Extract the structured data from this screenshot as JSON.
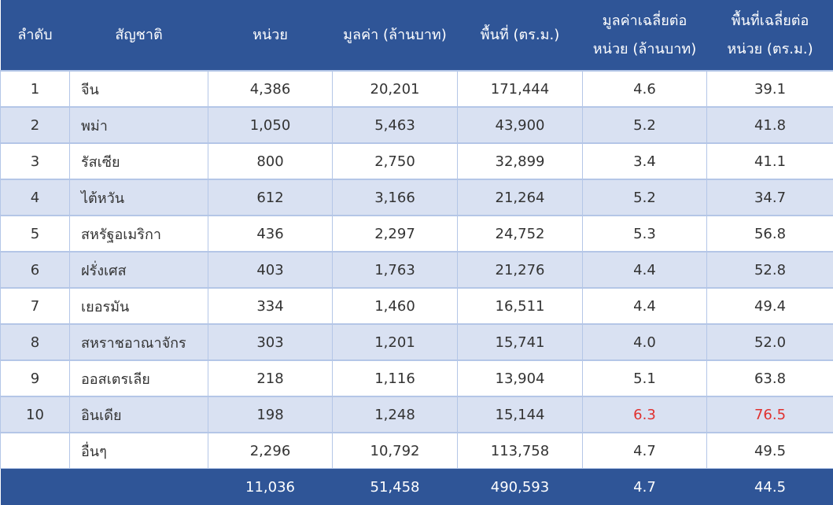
{
  "headers": [
    "ลำดับ",
    "สัญชาติ",
    "หน่วย",
    "มูลค่า (ล้านบาท)",
    "พื้นที่ (ตร.ม.)",
    [
      "มูลค่าเฉลี่ยต่อ",
      "หน่วย (ล้านบาท)"
    ],
    [
      "พื้นที่เฉลี่ยต่อ",
      "หน่วย (ตร.ม.)"
    ]
  ],
  "rows": [
    {
      "rank": "1",
      "nationality": "จีน",
      "units": "4,386",
      "value": "20,201",
      "area": "171,444",
      "avg_value": "4.6",
      "avg_area": "39.1"
    },
    {
      "rank": "2",
      "nationality": "พม่า",
      "units": "1,050",
      "value": "5,463",
      "area": "43,900",
      "avg_value": "5.2",
      "avg_area": "41.8"
    },
    {
      "rank": "3",
      "nationality": "รัสเซีย",
      "units": "800",
      "value": "2,750",
      "area": "32,899",
      "avg_value": "3.4",
      "avg_area": "41.1"
    },
    {
      "rank": "4",
      "nationality": "ไต้หวัน",
      "units": "612",
      "value": "3,166",
      "area": "21,264",
      "avg_value": "5.2",
      "avg_area": "34.7"
    },
    {
      "rank": "5",
      "nationality": "สหรัฐอเมริกา",
      "units": "436",
      "value": "2,297",
      "area": "24,752",
      "avg_value": "5.3",
      "avg_area": "56.8"
    },
    {
      "rank": "6",
      "nationality": "ฝรั่งเศส",
      "units": "403",
      "value": "1,763",
      "area": "21,276",
      "avg_value": "4.4",
      "avg_area": "52.8"
    },
    {
      "rank": "7",
      "nationality": "เยอรมัน",
      "units": "334",
      "value": "1,460",
      "area": "16,511",
      "avg_value": "4.4",
      "avg_area": "49.4"
    },
    {
      "rank": "8",
      "nationality": "สหราชอาณาจักร",
      "units": "303",
      "value": "1,201",
      "area": "15,741",
      "avg_value": "4.0",
      "avg_area": "52.0"
    },
    {
      "rank": "9",
      "nationality": "ออสเตรเลีย",
      "units": "218",
      "value": "1,116",
      "area": "13,904",
      "avg_value": "5.1",
      "avg_area": "63.8"
    },
    {
      "rank": "10",
      "nationality": "อินเดีย",
      "units": "198",
      "value": "1,248",
      "area": "15,144",
      "avg_value": "6.3",
      "avg_area": "76.5",
      "highlight": true
    },
    {
      "rank": "",
      "nationality": "อื่นๆ",
      "units": "2,296",
      "value": "10,792",
      "area": "113,758",
      "avg_value": "4.7",
      "avg_area": "49.5"
    }
  ],
  "total": {
    "units": "11,036",
    "value": "51,458",
    "area": "490,593",
    "avg_value": "4.7",
    "avg_area": "44.5"
  },
  "colors": {
    "header": "#2f5597",
    "alt_row": "#d9e1f2",
    "highlight": "#e0312f"
  }
}
